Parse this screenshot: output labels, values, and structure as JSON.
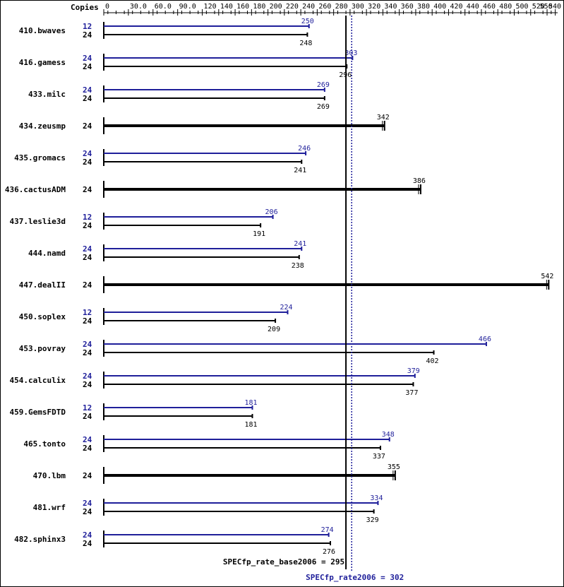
{
  "chart_data": {
    "type": "bar",
    "orientation": "horizontal",
    "copies_header": "Copies",
    "x_ticks": [
      "0",
      "30.0",
      "60.0",
      "90.0",
      "120",
      "140",
      "160",
      "180",
      "200",
      "220",
      "240",
      "260",
      "280",
      "300",
      "320",
      "340",
      "360",
      "380",
      "400",
      "420",
      "440",
      "460",
      "480",
      "500",
      "520",
      "540",
      "550"
    ],
    "xlim": [
      0,
      550
    ],
    "grid": false,
    "colors": {
      "peak": "#1f1f9a",
      "base": "#000000"
    },
    "benchmarks": [
      {
        "name": "410.bwaves",
        "peak_copies": "12",
        "peak": 250,
        "base_copies": "24",
        "base": 248
      },
      {
        "name": "416.gamess",
        "peak_copies": "24",
        "peak": 303,
        "base_copies": "24",
        "base": 296
      },
      {
        "name": "433.milc",
        "peak_copies": "24",
        "peak": 269,
        "base_copies": "24",
        "base": 269
      },
      {
        "name": "434.zeusmp",
        "peak_copies": null,
        "peak": null,
        "base_copies": "24",
        "base": 342
      },
      {
        "name": "435.gromacs",
        "peak_copies": "24",
        "peak": 246,
        "base_copies": "24",
        "base": 241
      },
      {
        "name": "436.cactusADM",
        "peak_copies": null,
        "peak": null,
        "base_copies": "24",
        "base": 386
      },
      {
        "name": "437.leslie3d",
        "peak_copies": "12",
        "peak": 206,
        "base_copies": "24",
        "base": 191
      },
      {
        "name": "444.namd",
        "peak_copies": "24",
        "peak": 241,
        "base_copies": "24",
        "base": 238
      },
      {
        "name": "447.dealII",
        "peak_copies": null,
        "peak": null,
        "base_copies": "24",
        "base": 542
      },
      {
        "name": "450.soplex",
        "peak_copies": "12",
        "peak": 224,
        "base_copies": "24",
        "base": 209
      },
      {
        "name": "453.povray",
        "peak_copies": "24",
        "peak": 466,
        "base_copies": "24",
        "base": 402
      },
      {
        "name": "454.calculix",
        "peak_copies": "24",
        "peak": 379,
        "base_copies": "24",
        "base": 377
      },
      {
        "name": "459.GemsFDTD",
        "peak_copies": "12",
        "peak": 181,
        "base_copies": "24",
        "base": 181
      },
      {
        "name": "465.tonto",
        "peak_copies": "24",
        "peak": 348,
        "base_copies": "24",
        "base": 337
      },
      {
        "name": "470.lbm",
        "peak_copies": null,
        "peak": null,
        "base_copies": "24",
        "base": 355
      },
      {
        "name": "481.wrf",
        "peak_copies": "24",
        "peak": 334,
        "base_copies": "24",
        "base": 329
      },
      {
        "name": "482.sphinx3",
        "peak_copies": "24",
        "peak": 274,
        "base_copies": "24",
        "base": 276
      }
    ],
    "base_summary": {
      "label": "SPECfp_rate_base2006 = 295",
      "value": 295
    },
    "peak_summary": {
      "label": "SPECfp_rate2006 = 302",
      "value": 302
    }
  }
}
